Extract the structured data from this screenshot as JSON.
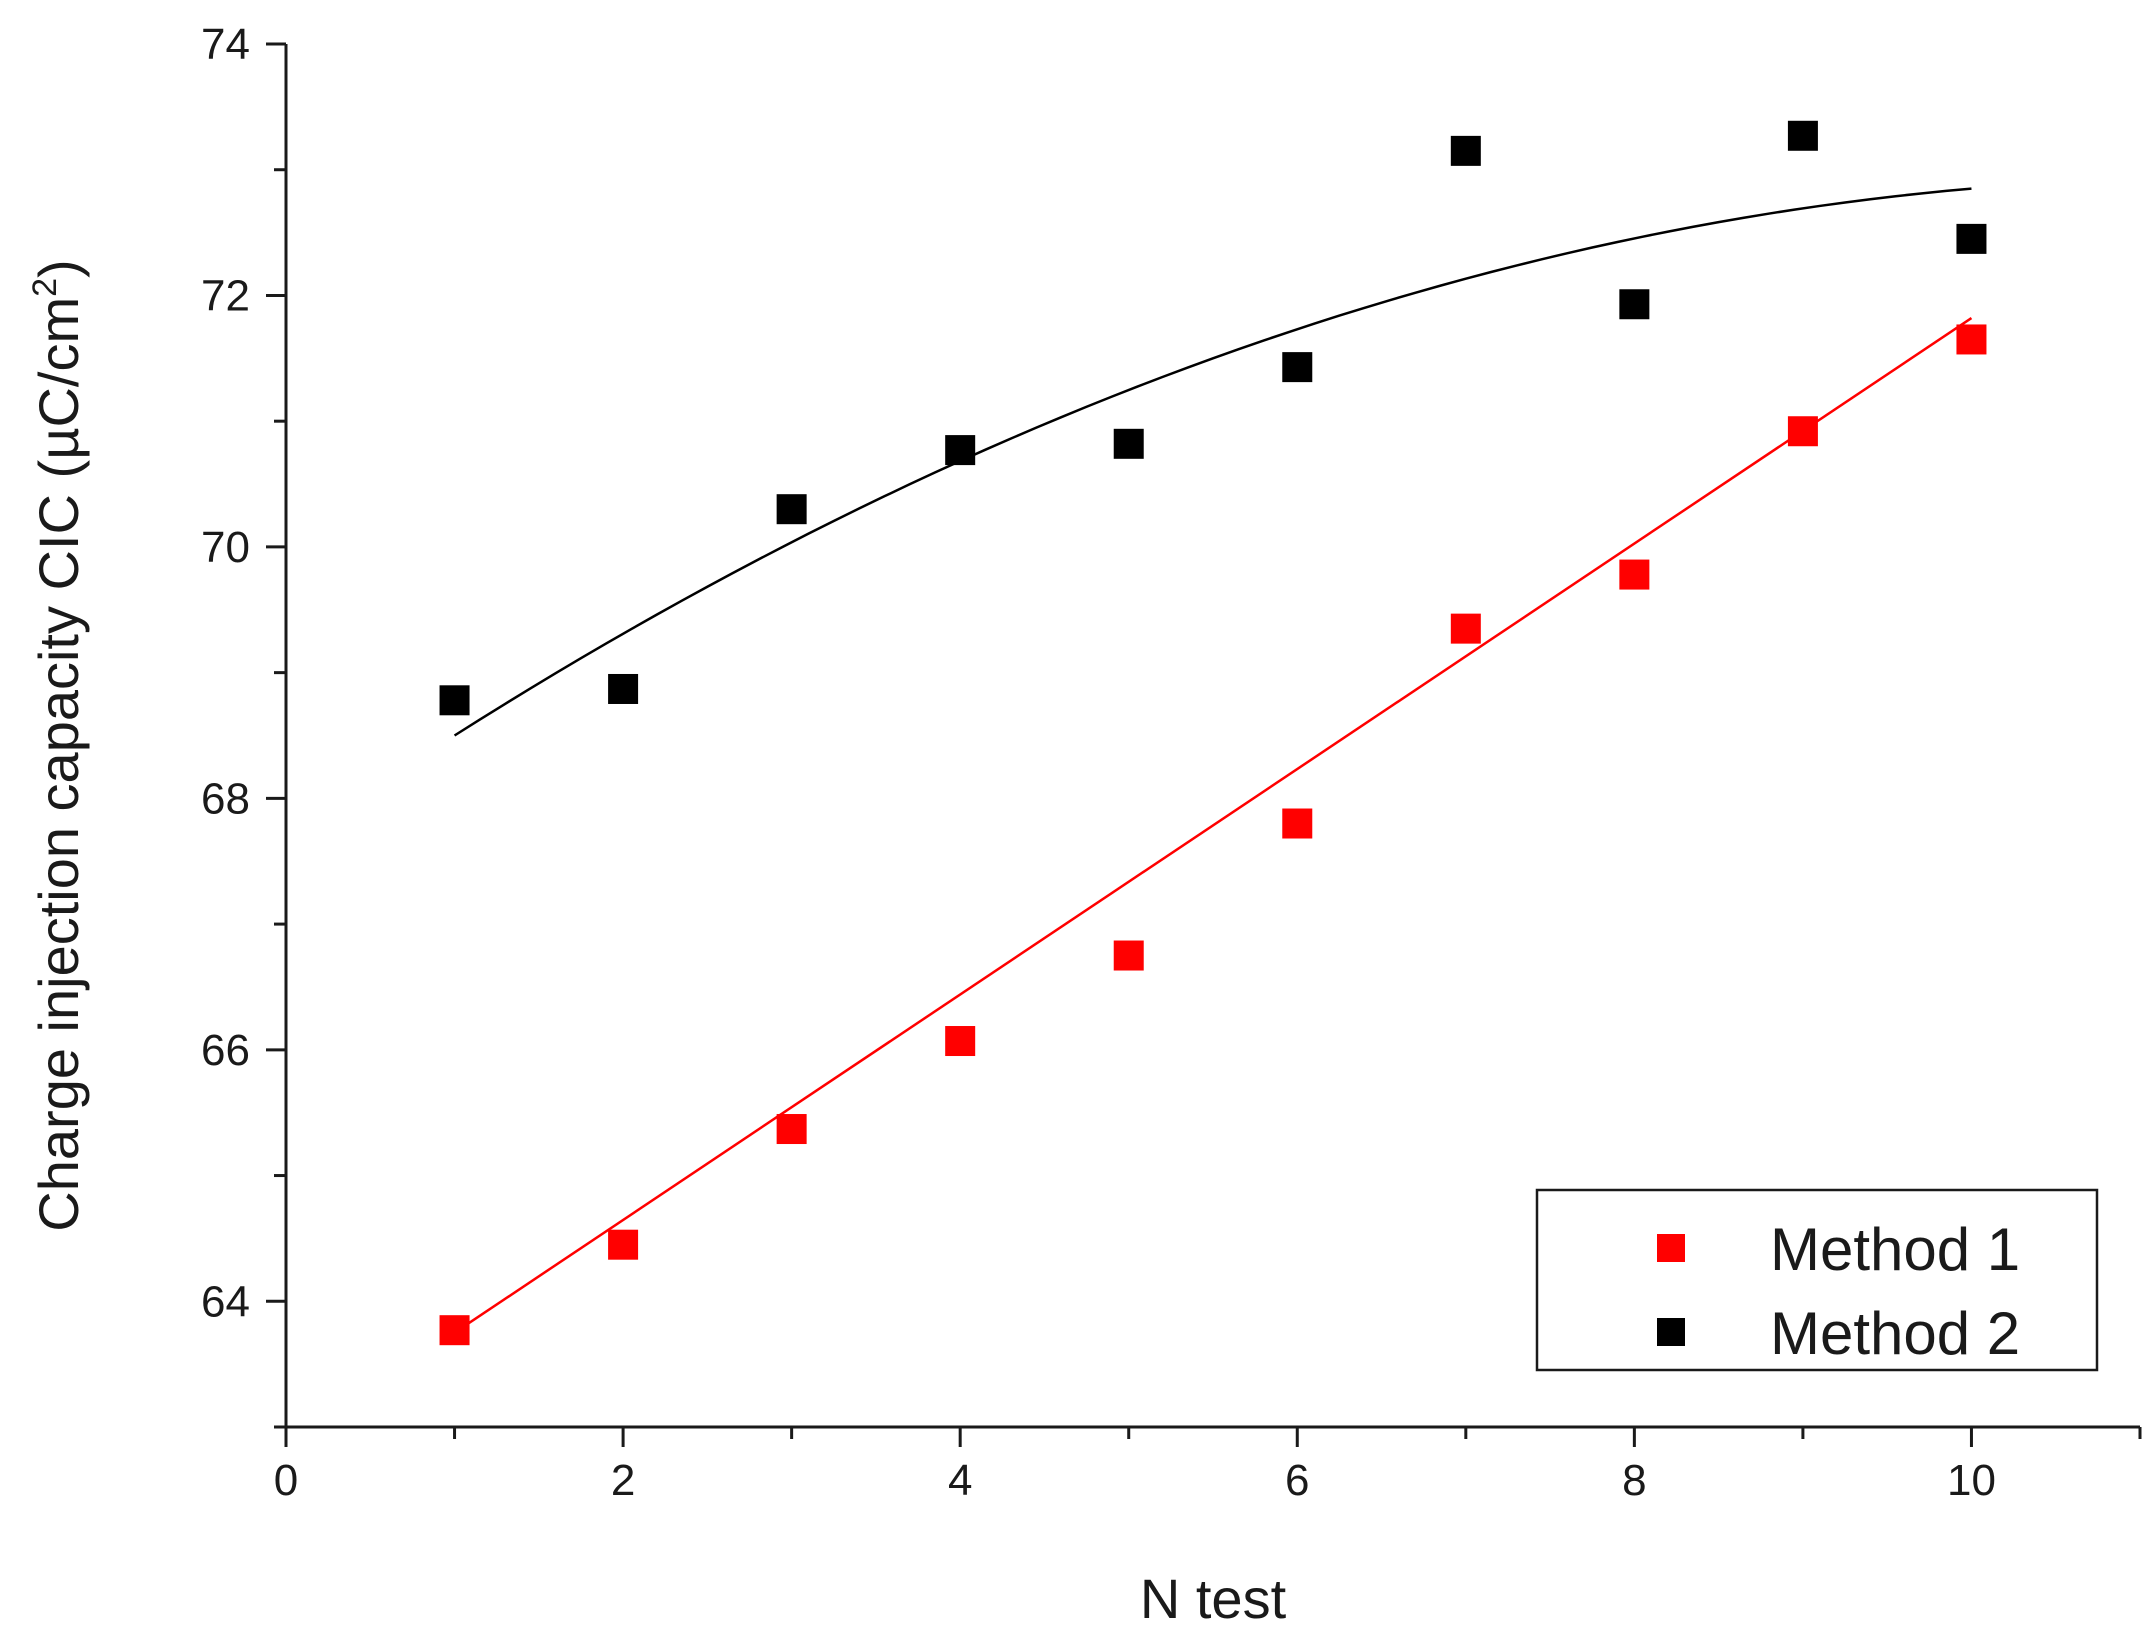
{
  "chart_data": {
    "type": "scatter",
    "title": "",
    "xlabel": "N test",
    "ylabel_main": "Charge injection capacity CIC (µC/cm",
    "ylabel_sup": "2",
    "ylabel_close": ")",
    "xlim": [
      0,
      11
    ],
    "ylim": [
      63,
      74
    ],
    "x_ticks": [
      0,
      2,
      4,
      6,
      8,
      10
    ],
    "x_tick_labels": [
      "0",
      "2",
      "4",
      "6",
      "8",
      "10"
    ],
    "y_ticks": [
      64,
      66,
      68,
      70,
      72,
      74
    ],
    "y_tick_labels": [
      "64",
      "66",
      "68",
      "70",
      "72",
      "74"
    ],
    "x_minor_ticks": [
      1,
      3,
      5,
      7,
      9,
      11
    ],
    "y_minor_ticks": [
      63,
      65,
      67,
      69,
      71,
      73
    ],
    "legend_position": "bottom-right",
    "series": [
      {
        "name": "Method 1",
        "color": "#ff0000",
        "x": [
          1,
          2,
          3,
          4,
          5,
          6,
          7,
          8,
          9,
          10
        ],
        "y": [
          63.77,
          64.45,
          65.37,
          66.07,
          66.75,
          67.8,
          69.35,
          69.78,
          70.92,
          71.65
        ],
        "fit": {
          "kind": "linear",
          "from": 1,
          "to": 10,
          "y_start": 63.75,
          "y_end": 71.82
        }
      },
      {
        "name": "Method 2",
        "color": "#000000",
        "x": [
          1,
          2,
          3,
          4,
          5,
          6,
          7,
          8,
          9,
          10
        ],
        "y": [
          68.78,
          68.87,
          70.3,
          70.77,
          70.82,
          71.43,
          73.15,
          71.93,
          73.27,
          72.45
        ],
        "fit": {
          "kind": "quadratic",
          "from": 1,
          "to": 10,
          "points": [
            [
              1,
              68.5
            ],
            [
              5.5,
              71.5
            ],
            [
              10,
              72.85
            ]
          ]
        }
      }
    ]
  }
}
